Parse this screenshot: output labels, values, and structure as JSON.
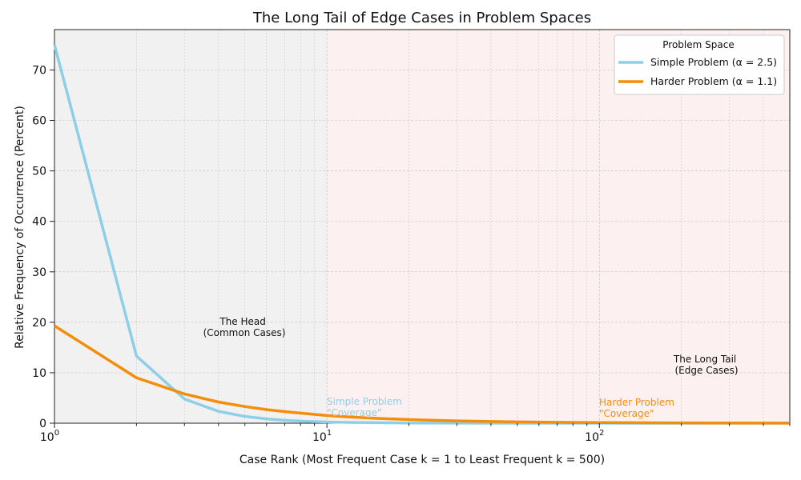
{
  "chart_data": {
    "type": "line",
    "title": "The Long Tail of Edge Cases in Problem Spaces",
    "xlabel": "Case Rank (Most Frequent Case k = 1 to Least Frequent k = 500)",
    "ylabel": "Relative Frequency of Occurrence (Percent)",
    "xscale": "log",
    "xlim": [
      1,
      500
    ],
    "ylim": [
      0,
      78
    ],
    "x_ticks": [
      {
        "base": "10",
        "exp": "0",
        "value": 1
      },
      {
        "base": "10",
        "exp": "1",
        "value": 10
      },
      {
        "base": "10",
        "exp": "2",
        "value": 100
      }
    ],
    "y_ticks": [
      "0",
      "10",
      "20",
      "30",
      "40",
      "50",
      "60",
      "70"
    ],
    "grid": true,
    "legend": {
      "title": "Problem Space",
      "position": "top-right"
    },
    "series": [
      {
        "name": "Simple Problem (α = 2.5)",
        "alpha": 2.5,
        "color": "#8ecfe8",
        "x": [
          1,
          2,
          3,
          4,
          5,
          6,
          7,
          8,
          9,
          10,
          12,
          15,
          20,
          30,
          50,
          100,
          200,
          500
        ],
        "values": [
          75.0,
          13.3,
          4.8,
          2.35,
          1.34,
          0.85,
          0.58,
          0.41,
          0.31,
          0.24,
          0.15,
          0.09,
          0.04,
          0.015,
          0.004,
          0.0008,
          0.0001,
          0.0
        ]
      },
      {
        "name": "Harder Problem (α = 1.1)",
        "alpha": 1.1,
        "color": "#f28e0c",
        "x": [
          1,
          2,
          3,
          4,
          5,
          6,
          7,
          8,
          9,
          10,
          12,
          15,
          20,
          30,
          50,
          70,
          100,
          150,
          200,
          300,
          500
        ],
        "values": [
          19.3,
          9.0,
          5.8,
          4.2,
          3.3,
          2.7,
          2.3,
          2.0,
          1.75,
          1.53,
          1.25,
          0.98,
          0.72,
          0.46,
          0.26,
          0.18,
          0.12,
          0.08,
          0.06,
          0.04,
          0.022
        ]
      }
    ],
    "regions": [
      {
        "name": "head",
        "x_range": [
          1,
          10
        ],
        "color": "#f1f1f1"
      },
      {
        "name": "tail",
        "x_range": [
          10,
          500
        ],
        "color": "#fdf0f0"
      }
    ],
    "annotations": {
      "head": {
        "line1": "The Head",
        "line2": "(Common Cases)"
      },
      "tail": {
        "line1": "The Long Tail",
        "line2": "(Edge Cases)"
      },
      "simple_coverage": {
        "line1": "Simple Problem",
        "line2": "\"Coverage\""
      },
      "harder_coverage": {
        "line1": "Harder Problem",
        "line2": "\"Coverage\""
      }
    }
  }
}
